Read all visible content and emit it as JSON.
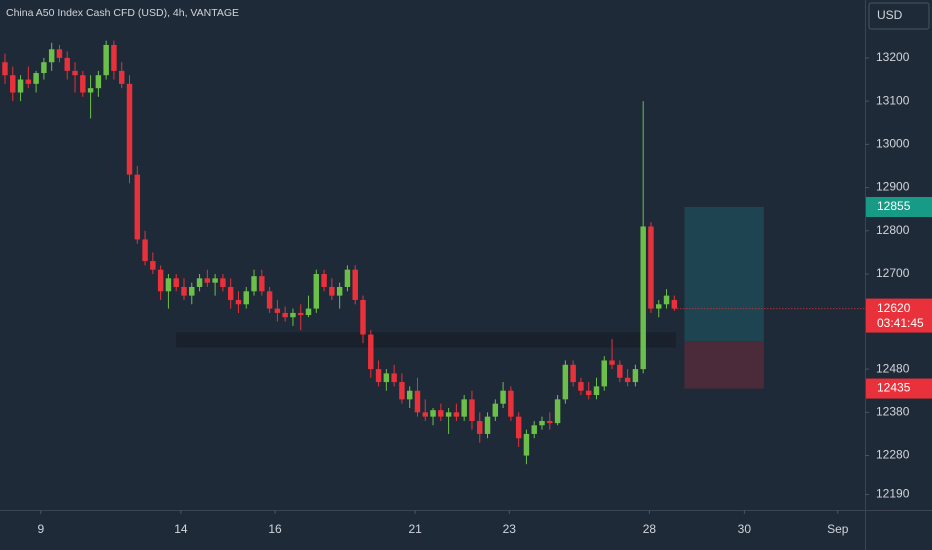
{
  "chart_data": {
    "type": "candlestick",
    "title": "China A50 Index Cash CFD (USD), 4h, VANTAGE",
    "currency": "USD",
    "open": [
      13190,
      13160,
      13120,
      13150,
      13140,
      13165,
      13190,
      13220,
      13200,
      13170,
      13160,
      13120,
      13130,
      13160,
      13230,
      13170,
      13140,
      12930,
      12780,
      12730,
      12710,
      12660,
      12690,
      12670,
      12650,
      12670,
      12690,
      12680,
      12690,
      12670,
      12640,
      12630,
      12660,
      12695,
      12660,
      12620,
      12610,
      12600,
      12610,
      12605,
      12620,
      12700,
      12670,
      12650,
      12670,
      12710,
      12640,
      12560,
      12480,
      12450,
      12470,
      12450,
      12410,
      12430,
      12380,
      12370,
      12385,
      12370,
      12380,
      12370,
      12410,
      12360,
      12330,
      12370,
      12400,
      12430,
      12370,
      12280,
      12330,
      12350,
      12360,
      12355,
      12410,
      12490,
      12450,
      12430,
      12420,
      12440,
      12500,
      12490,
      12460,
      12450,
      12480,
      12810,
      12620,
      12630,
      12640
    ],
    "high": [
      13210,
      13180,
      13160,
      13180,
      13170,
      13200,
      13235,
      13230,
      13215,
      13190,
      13170,
      13160,
      13170,
      13240,
      13240,
      13190,
      13160,
      12950,
      12800,
      12750,
      12720,
      12700,
      12700,
      12690,
      12680,
      12700,
      12710,
      12700,
      12700,
      12690,
      12660,
      12670,
      12710,
      12710,
      12670,
      12640,
      12625,
      12620,
      12630,
      12650,
      12710,
      12710,
      12690,
      12680,
      12720,
      12720,
      12650,
      12570,
      12500,
      12480,
      12490,
      12470,
      12440,
      12460,
      12410,
      12390,
      12400,
      12390,
      12400,
      12420,
      12430,
      12380,
      12380,
      12410,
      12450,
      12440,
      12380,
      12340,
      12360,
      12370,
      12380,
      12420,
      12500,
      12500,
      12460,
      12450,
      12460,
      12510,
      12550,
      12500,
      12480,
      12490,
      13100,
      12820,
      12640,
      12665,
      12650
    ],
    "low": [
      13140,
      13100,
      13100,
      13130,
      13120,
      13150,
      13170,
      13190,
      13150,
      13120,
      13110,
      13060,
      13110,
      13150,
      13150,
      13130,
      12910,
      12770,
      12720,
      12700,
      12640,
      12620,
      12660,
      12640,
      12630,
      12660,
      12670,
      12650,
      12660,
      12620,
      12610,
      12620,
      12650,
      12650,
      12610,
      12590,
      12590,
      12580,
      12570,
      12600,
      12610,
      12660,
      12640,
      12620,
      12660,
      12630,
      12540,
      12460,
      12440,
      12430,
      12440,
      12400,
      12390,
      12370,
      12360,
      12350,
      12360,
      12330,
      12360,
      12360,
      12340,
      12310,
      12320,
      12360,
      12390,
      12360,
      12300,
      12260,
      12320,
      12340,
      12340,
      12350,
      12400,
      12440,
      12420,
      12410,
      12410,
      12430,
      12480,
      12450,
      12440,
      12440,
      12470,
      12610,
      12600,
      12620,
      12615
    ],
    "close": [
      13160,
      13120,
      13150,
      13140,
      13165,
      13190,
      13220,
      13200,
      13170,
      13160,
      13120,
      13130,
      13160,
      13230,
      13170,
      13140,
      12930,
      12780,
      12730,
      12710,
      12660,
      12690,
      12670,
      12650,
      12670,
      12690,
      12680,
      12690,
      12670,
      12640,
      12630,
      12660,
      12695,
      12660,
      12620,
      12610,
      12600,
      12610,
      12605,
      12620,
      12700,
      12670,
      12650,
      12670,
      12710,
      12640,
      12560,
      12480,
      12450,
      12470,
      12450,
      12410,
      12430,
      12380,
      12370,
      12385,
      12370,
      12380,
      12370,
      12410,
      12360,
      12330,
      12370,
      12400,
      12430,
      12370,
      12320,
      12330,
      12350,
      12360,
      12355,
      12410,
      12490,
      12450,
      12430,
      12420,
      12440,
      12500,
      12490,
      12460,
      12450,
      12480,
      12810,
      12620,
      12630,
      12650,
      12620
    ],
    "up_color": "#6cc04a",
    "down_color": "#e8313a",
    "xlim": [
      -0.64,
      110.5
    ],
    "xticks": [
      {
        "value": 4.6,
        "label": "9"
      },
      {
        "value": 22.6,
        "label": "14"
      },
      {
        "value": 34.7,
        "label": "16"
      },
      {
        "value": 52.7,
        "label": "21"
      },
      {
        "value": 64.8,
        "label": "23"
      },
      {
        "value": 82.8,
        "label": "28"
      },
      {
        "value": 95,
        "label": "30"
      },
      {
        "value": 107,
        "label": "Sep"
      }
    ],
    "ylim": [
      12154,
      13334
    ],
    "yticks": [
      13200,
      13100,
      13000,
      12900,
      12800,
      12700,
      12480,
      12380,
      12280,
      12190
    ],
    "zone": {
      "x": [
        22,
        86.2
      ],
      "y": [
        12530,
        12565
      ],
      "color": "#18212c"
    },
    "position": {
      "x": [
        87.3,
        97.5
      ],
      "entry": 12545,
      "target": 12855,
      "stop": 12435,
      "target_color": "#22818a",
      "stop_color": "#b2303a"
    },
    "last_price": 12620,
    "countdown": "03:41:45"
  }
}
